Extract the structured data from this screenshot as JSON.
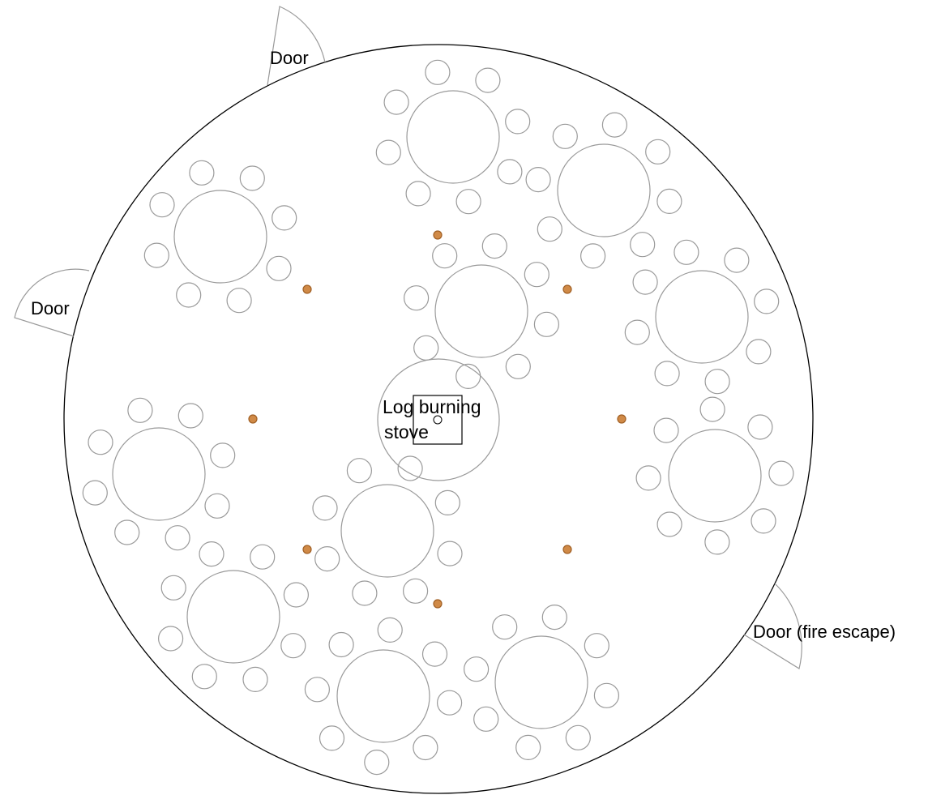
{
  "doors": [
    {
      "label": "Door"
    },
    {
      "label": "Door"
    },
    {
      "label": "Door (fire escape)"
    }
  ],
  "stove": {
    "label_line1": "Log burning",
    "label_line2": "stove"
  },
  "colors": {
    "wall": "#000000",
    "furniture": "#9a9a9a",
    "pillar_fill": "#d08a47",
    "pillar_stroke": "#a05f24",
    "stove": "#000000"
  },
  "icons": {
    "table": "round-table-icon",
    "chair": "chair-icon",
    "pillar": "pillar-icon",
    "door": "door-swing-icon",
    "stove": "stove-icon"
  }
}
